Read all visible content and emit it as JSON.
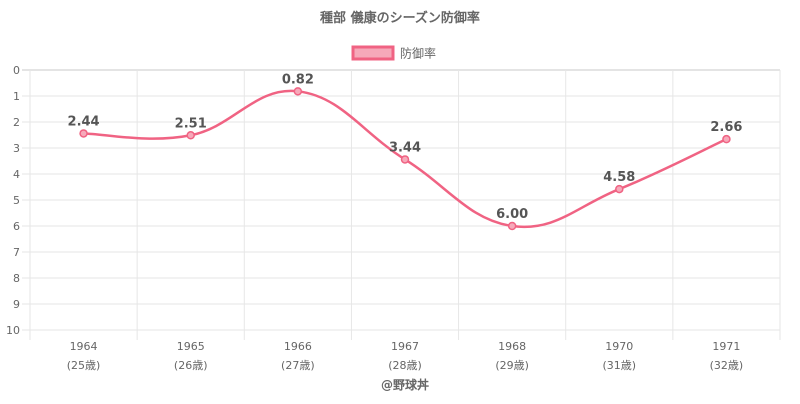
{
  "chart_data": {
    "type": "line",
    "title": "種部 儀康のシーズン防御率",
    "legend": {
      "position": "top",
      "entries": [
        "防御率"
      ]
    },
    "categories": [
      "1964",
      "1965",
      "1966",
      "1967",
      "1968",
      "1970",
      "1971"
    ],
    "age_labels": [
      "(25歳)",
      "(26歳)",
      "(27歳)",
      "(28歳)",
      "(29歳)",
      "(31歳)",
      "(32歳)"
    ],
    "series": [
      {
        "name": "防御率",
        "values": [
          2.44,
          2.51,
          0.82,
          3.44,
          6.0,
          4.58,
          2.66
        ],
        "labels": [
          "2.44",
          "2.51",
          "0.82",
          "3.44",
          "6.00",
          "4.58",
          "2.66"
        ]
      }
    ],
    "ylim": [
      0,
      10
    ],
    "y_reversed": true,
    "y_ticks": [
      0,
      1,
      2,
      3,
      4,
      5,
      6,
      7,
      8,
      9,
      10
    ],
    "grid": true,
    "colors": {
      "line": "#f06383",
      "fill": "#f6a9ba"
    },
    "credit": "@野球丼"
  }
}
